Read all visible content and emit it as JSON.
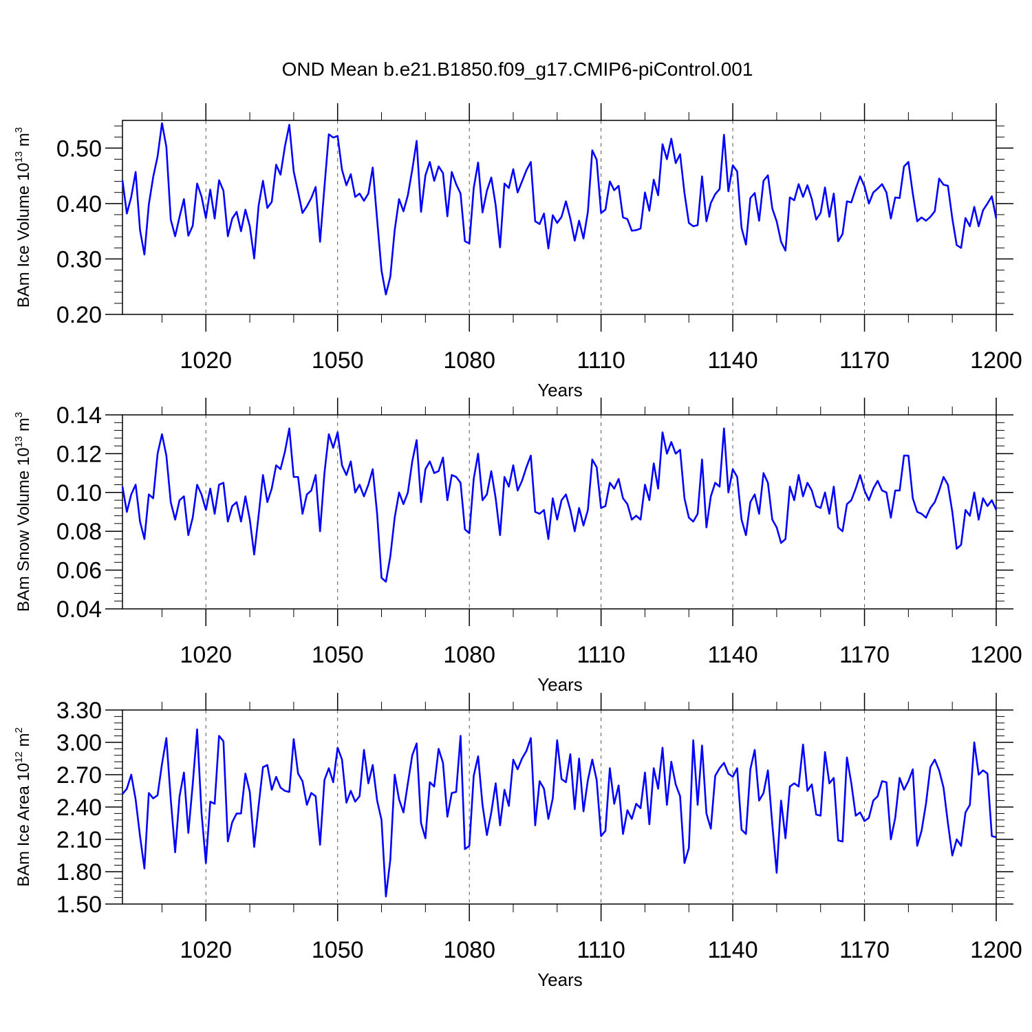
{
  "title": "OND Mean b.e21.B1850.f09_g17.CMIP6-piControl.001",
  "chart_data": [
    {
      "type": "line",
      "series_name": "BAm Ice Volume",
      "ylabel": "BAm Ice Volume 10",
      "ylabel_exp": "13",
      "ylabel_unit": " m",
      "ylabel_unit_exp": "3",
      "xlabel": "Years",
      "xlim": [
        1001,
        1200
      ],
      "ylim": [
        0.2,
        0.55
      ],
      "x_ticks": [
        1020,
        1050,
        1080,
        1110,
        1140,
        1170,
        1200
      ],
      "x_tick_labels": [
        "1020",
        "1050",
        "1080",
        "1110",
        "1140",
        "1170",
        "1200"
      ],
      "y_ticks": [
        0.2,
        0.3,
        0.4,
        0.5
      ],
      "y_tick_labels": [
        "0.20",
        "0.30",
        "0.40",
        "0.50"
      ],
      "x_start": 1001,
      "color": "#0000ff",
      "values": [
        0.442,
        0.382,
        0.412,
        0.457,
        0.352,
        0.308,
        0.398,
        0.448,
        0.485,
        0.545,
        0.502,
        0.371,
        0.341,
        0.376,
        0.408,
        0.342,
        0.36,
        0.436,
        0.413,
        0.374,
        0.425,
        0.373,
        0.442,
        0.423,
        0.341,
        0.373,
        0.385,
        0.35,
        0.389,
        0.359,
        0.301,
        0.396,
        0.441,
        0.392,
        0.403,
        0.47,
        0.452,
        0.503,
        0.542,
        0.458,
        0.421,
        0.383,
        0.395,
        0.41,
        0.43,
        0.331,
        0.43,
        0.525,
        0.519,
        0.522,
        0.461,
        0.433,
        0.453,
        0.412,
        0.418,
        0.405,
        0.418,
        0.465,
        0.371,
        0.279,
        0.236,
        0.268,
        0.352,
        0.408,
        0.386,
        0.415,
        0.461,
        0.513,
        0.385,
        0.451,
        0.475,
        0.441,
        0.467,
        0.455,
        0.377,
        0.457,
        0.435,
        0.418,
        0.332,
        0.328,
        0.428,
        0.474,
        0.384,
        0.423,
        0.447,
        0.397,
        0.321,
        0.436,
        0.428,
        0.462,
        0.42,
        0.44,
        0.46,
        0.475,
        0.368,
        0.363,
        0.382,
        0.319,
        0.379,
        0.365,
        0.376,
        0.404,
        0.373,
        0.333,
        0.369,
        0.337,
        0.385,
        0.496,
        0.479,
        0.383,
        0.389,
        0.44,
        0.424,
        0.432,
        0.375,
        0.372,
        0.351,
        0.352,
        0.355,
        0.42,
        0.387,
        0.443,
        0.415,
        0.507,
        0.48,
        0.517,
        0.473,
        0.489,
        0.419,
        0.365,
        0.359,
        0.361,
        0.449,
        0.368,
        0.401,
        0.417,
        0.426,
        0.524,
        0.422,
        0.469,
        0.458,
        0.356,
        0.326,
        0.41,
        0.419,
        0.369,
        0.441,
        0.451,
        0.391,
        0.368,
        0.331,
        0.315,
        0.411,
        0.406,
        0.435,
        0.412,
        0.433,
        0.408,
        0.371,
        0.383,
        0.429,
        0.376,
        0.418,
        0.332,
        0.345,
        0.404,
        0.402,
        0.427,
        0.449,
        0.431,
        0.4,
        0.42,
        0.427,
        0.435,
        0.42,
        0.373,
        0.411,
        0.41,
        0.467,
        0.475,
        0.418,
        0.368,
        0.375,
        0.369,
        0.376,
        0.386,
        0.445,
        0.434,
        0.432,
        0.373,
        0.325,
        0.32,
        0.374,
        0.359,
        0.394,
        0.359,
        0.388,
        0.4,
        0.413,
        0.373
      ]
    },
    {
      "type": "line",
      "series_name": "BAm Snow Volume",
      "ylabel": "BAm Snow Volume 10",
      "ylabel_exp": "13",
      "ylabel_unit": " m",
      "ylabel_unit_exp": "3",
      "xlabel": "Years",
      "xlim": [
        1001,
        1200
      ],
      "ylim": [
        0.04,
        0.14
      ],
      "x_ticks": [
        1020,
        1050,
        1080,
        1110,
        1140,
        1170,
        1200
      ],
      "x_tick_labels": [
        "1020",
        "1050",
        "1080",
        "1110",
        "1140",
        "1170",
        "1200"
      ],
      "y_ticks": [
        0.04,
        0.06,
        0.08,
        0.1,
        0.12,
        0.14
      ],
      "y_tick_labels": [
        "0.04",
        "0.06",
        "0.08",
        "0.10",
        "0.12",
        "0.14"
      ],
      "x_start": 1001,
      "color": "#0000ff",
      "values": [
        0.103,
        0.09,
        0.099,
        0.104,
        0.085,
        0.076,
        0.099,
        0.097,
        0.12,
        0.13,
        0.119,
        0.095,
        0.086,
        0.096,
        0.098,
        0.078,
        0.087,
        0.104,
        0.099,
        0.091,
        0.102,
        0.089,
        0.104,
        0.105,
        0.085,
        0.093,
        0.095,
        0.085,
        0.098,
        0.086,
        0.068,
        0.088,
        0.109,
        0.095,
        0.102,
        0.114,
        0.112,
        0.121,
        0.133,
        0.108,
        0.108,
        0.089,
        0.099,
        0.101,
        0.109,
        0.08,
        0.11,
        0.13,
        0.123,
        0.131,
        0.114,
        0.109,
        0.116,
        0.1,
        0.104,
        0.098,
        0.104,
        0.112,
        0.089,
        0.056,
        0.054,
        0.067,
        0.087,
        0.1,
        0.094,
        0.1,
        0.116,
        0.127,
        0.095,
        0.112,
        0.116,
        0.11,
        0.111,
        0.118,
        0.096,
        0.109,
        0.108,
        0.105,
        0.081,
        0.079,
        0.107,
        0.12,
        0.096,
        0.099,
        0.111,
        0.097,
        0.078,
        0.108,
        0.103,
        0.114,
        0.101,
        0.106,
        0.113,
        0.119,
        0.09,
        0.089,
        0.091,
        0.076,
        0.097,
        0.086,
        0.096,
        0.099,
        0.091,
        0.08,
        0.092,
        0.083,
        0.091,
        0.117,
        0.113,
        0.092,
        0.093,
        0.105,
        0.102,
        0.107,
        0.097,
        0.094,
        0.086,
        0.088,
        0.086,
        0.104,
        0.096,
        0.115,
        0.102,
        0.131,
        0.12,
        0.126,
        0.12,
        0.122,
        0.097,
        0.087,
        0.085,
        0.089,
        0.117,
        0.082,
        0.098,
        0.105,
        0.103,
        0.133,
        0.1,
        0.112,
        0.108,
        0.086,
        0.078,
        0.095,
        0.099,
        0.089,
        0.11,
        0.105,
        0.086,
        0.082,
        0.074,
        0.076,
        0.103,
        0.096,
        0.109,
        0.098,
        0.105,
        0.101,
        0.093,
        0.092,
        0.1,
        0.089,
        0.103,
        0.082,
        0.08,
        0.094,
        0.096,
        0.102,
        0.109,
        0.101,
        0.096,
        0.102,
        0.106,
        0.101,
        0.1,
        0.087,
        0.101,
        0.101,
        0.119,
        0.119,
        0.097,
        0.09,
        0.089,
        0.087,
        0.092,
        0.095,
        0.101,
        0.108,
        0.104,
        0.09,
        0.071,
        0.073,
        0.091,
        0.088,
        0.1,
        0.086,
        0.097,
        0.093,
        0.096,
        0.091
      ]
    },
    {
      "type": "line",
      "series_name": "BAm Ice Area",
      "ylabel": "BAm Ice Area 10",
      "ylabel_exp": "12",
      "ylabel_unit": " m",
      "ylabel_unit_exp": "2",
      "xlabel": "Years",
      "xlim": [
        1001,
        1200
      ],
      "ylim": [
        1.5,
        3.3
      ],
      "x_ticks": [
        1020,
        1050,
        1080,
        1110,
        1140,
        1170,
        1200
      ],
      "x_tick_labels": [
        "1020",
        "1050",
        "1080",
        "1110",
        "1140",
        "1170",
        "1200"
      ],
      "y_ticks": [
        1.5,
        1.8,
        2.1,
        2.4,
        2.7,
        3.0,
        3.3
      ],
      "y_tick_labels": [
        "1.50",
        "1.80",
        "2.10",
        "2.40",
        "2.70",
        "3.00",
        "3.30"
      ],
      "x_start": 1001,
      "color": "#0000ff",
      "values": [
        2.52,
        2.57,
        2.7,
        2.47,
        2.13,
        1.83,
        2.53,
        2.48,
        2.51,
        2.8,
        3.04,
        2.47,
        1.98,
        2.5,
        2.72,
        2.16,
        2.61,
        3.12,
        2.35,
        1.88,
        2.45,
        2.43,
        3.06,
        3.01,
        2.08,
        2.26,
        2.34,
        2.34,
        2.71,
        2.54,
        2.03,
        2.41,
        2.77,
        2.79,
        2.56,
        2.68,
        2.58,
        2.55,
        2.54,
        3.03,
        2.71,
        2.64,
        2.42,
        2.53,
        2.5,
        2.05,
        2.65,
        2.76,
        2.63,
        2.95,
        2.84,
        2.44,
        2.55,
        2.45,
        2.5,
        2.93,
        2.62,
        2.79,
        2.46,
        2.28,
        1.57,
        1.91,
        2.7,
        2.47,
        2.35,
        2.62,
        2.88,
        2.99,
        2.25,
        2.11,
        2.63,
        2.59,
        2.94,
        2.81,
        2.31,
        2.53,
        2.54,
        3.06,
        2.01,
        2.04,
        2.69,
        2.87,
        2.42,
        2.14,
        2.35,
        2.62,
        2.23,
        2.56,
        2.41,
        2.84,
        2.75,
        2.85,
        2.92,
        3.04,
        2.23,
        2.64,
        2.57,
        2.29,
        2.48,
        3.02,
        2.66,
        2.63,
        2.89,
        2.38,
        2.85,
        2.36,
        2.65,
        2.84,
        2.65,
        2.13,
        2.18,
        2.76,
        2.43,
        2.6,
        2.15,
        2.37,
        2.29,
        2.43,
        2.39,
        2.72,
        2.24,
        2.76,
        2.57,
        2.95,
        2.42,
        2.82,
        2.61,
        2.5,
        1.88,
        2.02,
        3.02,
        2.42,
        2.97,
        2.34,
        2.2,
        2.69,
        2.76,
        2.81,
        2.71,
        2.68,
        2.76,
        2.19,
        2.15,
        2.75,
        2.93,
        2.46,
        2.53,
        2.74,
        2.24,
        1.79,
        2.46,
        2.11,
        2.59,
        2.62,
        2.59,
        2.98,
        2.55,
        2.61,
        2.33,
        2.32,
        2.91,
        2.62,
        2.67,
        2.09,
        2.08,
        2.86,
        2.62,
        2.32,
        2.35,
        2.27,
        2.3,
        2.46,
        2.5,
        2.64,
        2.63,
        2.1,
        2.3,
        2.67,
        2.56,
        2.64,
        2.75,
        2.04,
        2.18,
        2.43,
        2.77,
        2.84,
        2.74,
        2.58,
        2.25,
        1.95,
        2.1,
        2.04,
        2.35,
        2.42,
        3.0,
        2.7,
        2.74,
        2.71,
        2.13,
        2.12
      ]
    }
  ]
}
